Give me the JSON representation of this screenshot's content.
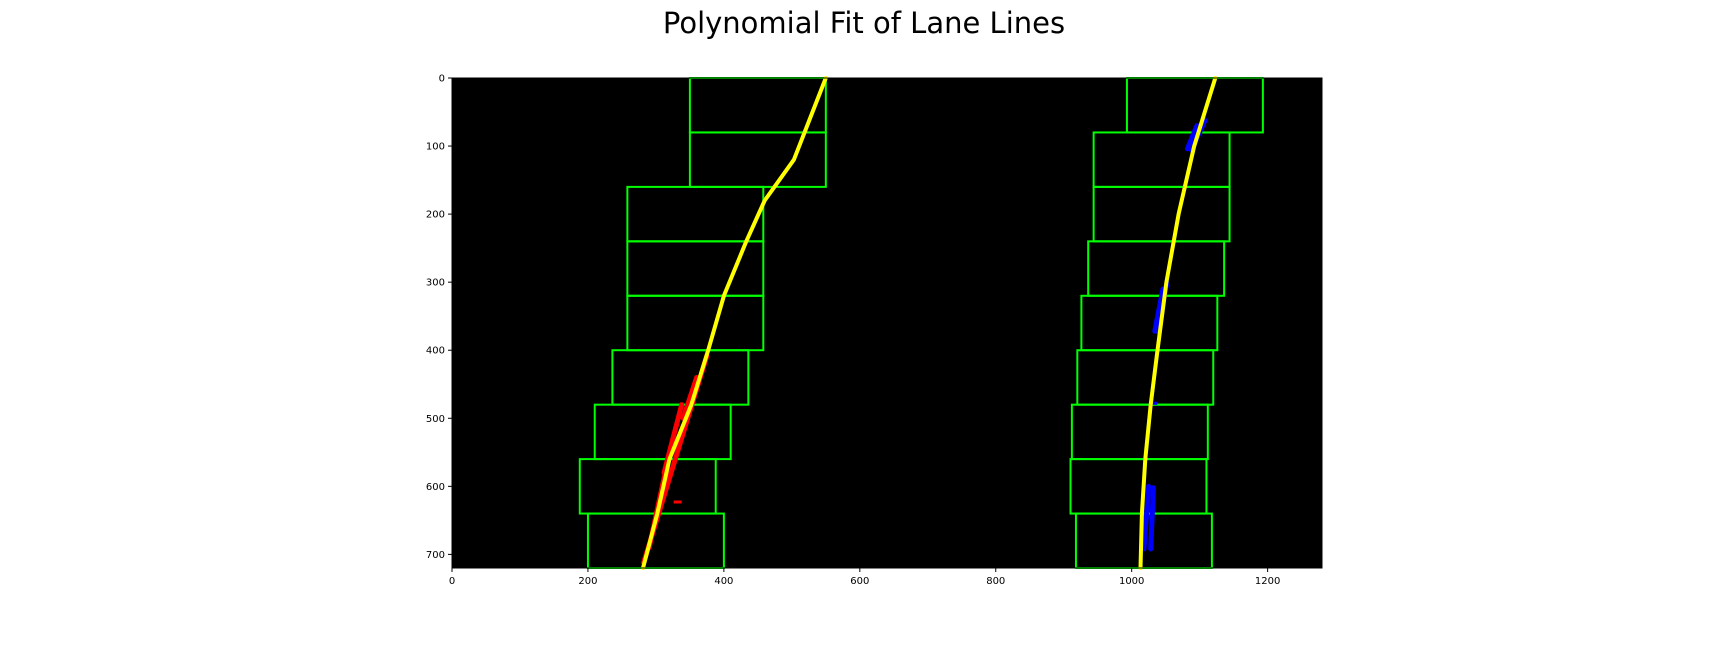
{
  "chart_data": {
    "type": "scatter",
    "title": "Polynomial Fit of Lane Lines",
    "xlabel": "",
    "ylabel": "",
    "xlim": [
      0,
      1280
    ],
    "ylim": [
      720,
      0
    ],
    "y_inverted": true,
    "xticks": [
      0,
      200,
      400,
      600,
      800,
      1000,
      1200
    ],
    "yticks": [
      0,
      100,
      200,
      300,
      400,
      500,
      600,
      700
    ],
    "background": "#000000",
    "grid": false,
    "colors": {
      "window": "#00ff00",
      "fit": "#ffff00",
      "left_pixels": "#ff0000",
      "right_pixels": "#0000ff"
    },
    "windows": [
      {
        "lane": "left",
        "x": [
          350,
          550
        ],
        "y": [
          0,
          80
        ]
      },
      {
        "lane": "left",
        "x": [
          350,
          550
        ],
        "y": [
          80,
          160
        ]
      },
      {
        "lane": "left",
        "x": [
          258,
          458
        ],
        "y": [
          160,
          240
        ]
      },
      {
        "lane": "left",
        "x": [
          258,
          458
        ],
        "y": [
          240,
          320
        ]
      },
      {
        "lane": "left",
        "x": [
          258,
          458
        ],
        "y": [
          320,
          400
        ]
      },
      {
        "lane": "left",
        "x": [
          236,
          436
        ],
        "y": [
          400,
          480
        ]
      },
      {
        "lane": "left",
        "x": [
          210,
          410
        ],
        "y": [
          480,
          560
        ]
      },
      {
        "lane": "left",
        "x": [
          188,
          388
        ],
        "y": [
          560,
          640
        ]
      },
      {
        "lane": "left",
        "x": [
          200,
          400
        ],
        "y": [
          640,
          720
        ]
      },
      {
        "lane": "right",
        "x": [
          993,
          1193
        ],
        "y": [
          0,
          80
        ]
      },
      {
        "lane": "right",
        "x": [
          944,
          1144
        ],
        "y": [
          80,
          160
        ]
      },
      {
        "lane": "right",
        "x": [
          944,
          1144
        ],
        "y": [
          160,
          240
        ]
      },
      {
        "lane": "right",
        "x": [
          936,
          1136
        ],
        "y": [
          240,
          320
        ]
      },
      {
        "lane": "right",
        "x": [
          926,
          1126
        ],
        "y": [
          320,
          400
        ]
      },
      {
        "lane": "right",
        "x": [
          920,
          1120
        ],
        "y": [
          400,
          480
        ]
      },
      {
        "lane": "right",
        "x": [
          912,
          1112
        ],
        "y": [
          480,
          560
        ]
      },
      {
        "lane": "right",
        "x": [
          910,
          1110
        ],
        "y": [
          560,
          640
        ]
      },
      {
        "lane": "right",
        "x": [
          918,
          1118
        ],
        "y": [
          640,
          720
        ]
      }
    ],
    "series": [
      {
        "kind": "fit",
        "lane": "left",
        "points": [
          [
            550,
            0
          ],
          [
            503,
            120
          ],
          [
            460,
            180
          ],
          [
            433,
            240
          ],
          [
            400,
            320
          ],
          [
            377,
            400
          ],
          [
            352,
            480
          ],
          [
            320,
            560
          ],
          [
            302,
            640
          ],
          [
            281,
            720
          ]
        ]
      },
      {
        "kind": "fit",
        "lane": "right",
        "points": [
          [
            1123,
            0
          ],
          [
            1092,
            100
          ],
          [
            1069,
            200
          ],
          [
            1051,
            300
          ],
          [
            1038,
            400
          ],
          [
            1028,
            480
          ],
          [
            1020,
            560
          ],
          [
            1015,
            640
          ],
          [
            1013,
            720
          ]
        ]
      },
      {
        "kind": "pixels",
        "lane": "left",
        "segments": [
          [
            [
              375,
              408
            ],
            [
              282,
              712
            ]
          ],
          [
            [
              360,
              440
            ],
            [
              340,
              500
            ]
          ],
          [
            [
              338,
              480
            ],
            [
              312,
              580
            ]
          ],
          [
            [
              318,
              560
            ],
            [
              290,
              690
            ]
          ]
        ],
        "blobs": [
          [
            332,
            623
          ]
        ]
      },
      {
        "kind": "pixels",
        "lane": "right",
        "segments": [
          [
            [
              1108,
              62
            ],
            [
              1088,
              106
            ]
          ],
          [
            [
              1096,
              70
            ],
            [
              1082,
              104
            ]
          ],
          [
            [
              1052,
              300
            ],
            [
              1038,
              372
            ]
          ],
          [
            [
              1046,
              310
            ],
            [
              1034,
              372
            ]
          ],
          [
            [
              1025,
              600
            ],
            [
              1018,
              692
            ]
          ],
          [
            [
              1032,
              602
            ],
            [
              1028,
              692
            ]
          ]
        ],
        "blobs": [
          [
            1032,
            478
          ]
        ]
      }
    ]
  }
}
